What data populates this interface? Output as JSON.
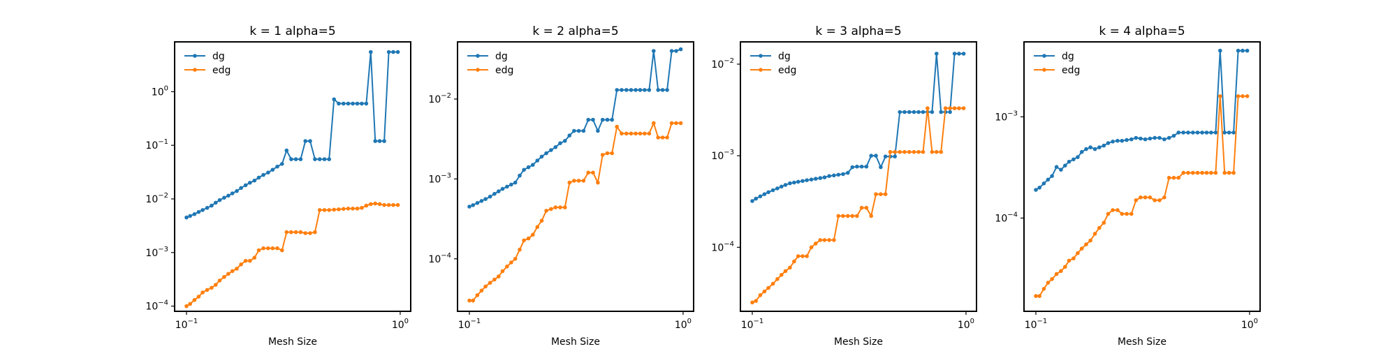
{
  "chart_data": [
    {
      "type": "line",
      "title": "k = 1 alpha=5",
      "xlabel": "Mesh Size",
      "ylabel": "",
      "xscale": "log",
      "yscale": "log",
      "xlim": [
        0.088,
        1.12
      ],
      "ylim": [
        8e-05,
        8.5
      ],
      "xticks": [
        {
          "value": 0.1,
          "base": "10",
          "exp": "−1"
        },
        {
          "value": 1.0,
          "base": "10",
          "exp": "0"
        }
      ],
      "yticks": [
        {
          "value": 0.0001,
          "base": "10",
          "exp": "−4"
        },
        {
          "value": 0.001,
          "base": "10",
          "exp": "−3"
        },
        {
          "value": 0.01,
          "base": "10",
          "exp": "−2"
        },
        {
          "value": 0.1,
          "base": "10",
          "exp": "−1"
        },
        {
          "value": 1.0,
          "base": "10",
          "exp": "0"
        }
      ],
      "legend_position": "top-left",
      "x": [
        0.1,
        0.104,
        0.109,
        0.114,
        0.119,
        0.125,
        0.131,
        0.137,
        0.143,
        0.15,
        0.157,
        0.164,
        0.172,
        0.18,
        0.189,
        0.198,
        0.208,
        0.218,
        0.229,
        0.241,
        0.253,
        0.266,
        0.28,
        0.294,
        0.309,
        0.325,
        0.342,
        0.36,
        0.379,
        0.399,
        0.42,
        0.442,
        0.465,
        0.49,
        0.516,
        0.543,
        0.571,
        0.6,
        0.63,
        0.661,
        0.694,
        0.728,
        0.764,
        0.802,
        0.842,
        0.884,
        0.928,
        0.975
      ],
      "series": [
        {
          "name": "dg",
          "color": "#1f77b4",
          "values": [
            0.0045,
            0.0048,
            0.0052,
            0.0057,
            0.0062,
            0.0068,
            0.0075,
            0.0085,
            0.0095,
            0.0105,
            0.0115,
            0.0127,
            0.014,
            0.016,
            0.018,
            0.02,
            0.022,
            0.025,
            0.028,
            0.031,
            0.035,
            0.04,
            0.045,
            0.08,
            0.055,
            0.055,
            0.055,
            0.12,
            0.12,
            0.055,
            0.055,
            0.055,
            0.055,
            0.72,
            0.6,
            0.6,
            0.6,
            0.6,
            0.6,
            0.6,
            0.6,
            5.5,
            0.12,
            0.12,
            0.12,
            5.5,
            5.5,
            5.5
          ]
        },
        {
          "name": "edg",
          "color": "#ff7f0e",
          "values": [
            0.0001,
            0.00011,
            0.00013,
            0.00015,
            0.00018,
            0.0002,
            0.00022,
            0.00025,
            0.0003,
            0.00035,
            0.0004,
            0.00045,
            0.0005,
            0.0006,
            0.0007,
            0.0007,
            0.0008,
            0.0011,
            0.0012,
            0.0012,
            0.0012,
            0.0012,
            0.0011,
            0.0024,
            0.0024,
            0.0024,
            0.0024,
            0.0023,
            0.0023,
            0.0024,
            0.0062,
            0.0062,
            0.0062,
            0.0063,
            0.0064,
            0.0065,
            0.0066,
            0.0066,
            0.0066,
            0.0068,
            0.0075,
            0.008,
            0.0082,
            0.008,
            0.0077,
            0.0077,
            0.0077,
            0.0077
          ]
        }
      ]
    },
    {
      "type": "line",
      "title": "k = 2 alpha=5",
      "xlabel": "Mesh Size",
      "ylabel": "",
      "xscale": "log",
      "yscale": "log",
      "xlim": [
        0.088,
        1.12
      ],
      "ylim": [
        2.2e-05,
        0.052
      ],
      "xticks": [
        {
          "value": 0.1,
          "base": "10",
          "exp": "−1"
        },
        {
          "value": 1.0,
          "base": "10",
          "exp": "0"
        }
      ],
      "yticks": [
        {
          "value": 0.0001,
          "base": "10",
          "exp": "−4"
        },
        {
          "value": 0.001,
          "base": "10",
          "exp": "−3"
        },
        {
          "value": 0.01,
          "base": "10",
          "exp": "−2"
        }
      ],
      "legend_position": "top-left",
      "x": [
        0.1,
        0.104,
        0.109,
        0.114,
        0.119,
        0.125,
        0.131,
        0.137,
        0.143,
        0.15,
        0.157,
        0.164,
        0.172,
        0.18,
        0.189,
        0.198,
        0.208,
        0.218,
        0.229,
        0.241,
        0.253,
        0.266,
        0.28,
        0.294,
        0.309,
        0.325,
        0.342,
        0.36,
        0.379,
        0.399,
        0.42,
        0.442,
        0.465,
        0.49,
        0.516,
        0.543,
        0.571,
        0.6,
        0.63,
        0.661,
        0.694,
        0.728,
        0.764,
        0.802,
        0.842,
        0.884,
        0.928,
        0.975
      ],
      "series": [
        {
          "name": "dg",
          "color": "#1f77b4",
          "values": [
            0.00045,
            0.00047,
            0.0005,
            0.00053,
            0.00056,
            0.0006,
            0.00065,
            0.0007,
            0.00075,
            0.0008,
            0.00085,
            0.0009,
            0.0011,
            0.0013,
            0.0014,
            0.0015,
            0.0017,
            0.0019,
            0.0021,
            0.0023,
            0.0025,
            0.0028,
            0.003,
            0.0035,
            0.004,
            0.004,
            0.004,
            0.0055,
            0.0055,
            0.004,
            0.0055,
            0.0055,
            0.0055,
            0.013,
            0.013,
            0.013,
            0.013,
            0.013,
            0.013,
            0.013,
            0.013,
            0.04,
            0.013,
            0.013,
            0.013,
            0.04,
            0.04,
            0.042
          ]
        },
        {
          "name": "edg",
          "color": "#ff7f0e",
          "values": [
            3e-05,
            3e-05,
            3.5e-05,
            4e-05,
            4.5e-05,
            5e-05,
            5.5e-05,
            6e-05,
            7e-05,
            8e-05,
            9e-05,
            0.0001,
            0.00013,
            0.00017,
            0.00018,
            0.0002,
            0.00025,
            0.0003,
            0.0004,
            0.00042,
            0.00044,
            0.00044,
            0.00044,
            0.0009,
            0.00095,
            0.00095,
            0.00095,
            0.0012,
            0.0012,
            0.0009,
            0.002,
            0.0021,
            0.0021,
            0.0045,
            0.0037,
            0.0037,
            0.0037,
            0.0037,
            0.0037,
            0.0037,
            0.0037,
            0.005,
            0.0033,
            0.0033,
            0.0033,
            0.005,
            0.005,
            0.005
          ]
        }
      ]
    },
    {
      "type": "line",
      "title": "k = 3 alpha=5",
      "xlabel": "Mesh Size",
      "ylabel": "",
      "xscale": "log",
      "yscale": "log",
      "xlim": [
        0.088,
        1.12
      ],
      "ylim": [
        2e-05,
        0.0175
      ],
      "xticks": [
        {
          "value": 0.1,
          "base": "10",
          "exp": "−1"
        },
        {
          "value": 1.0,
          "base": "10",
          "exp": "0"
        }
      ],
      "yticks": [
        {
          "value": 0.0001,
          "base": "10",
          "exp": "−4"
        },
        {
          "value": 0.001,
          "base": "10",
          "exp": "−3"
        },
        {
          "value": 0.01,
          "base": "10",
          "exp": "−2"
        }
      ],
      "legend_position": "top-left",
      "x": [
        0.1,
        0.104,
        0.109,
        0.114,
        0.119,
        0.125,
        0.131,
        0.137,
        0.143,
        0.15,
        0.157,
        0.164,
        0.172,
        0.18,
        0.189,
        0.198,
        0.208,
        0.218,
        0.229,
        0.241,
        0.253,
        0.266,
        0.28,
        0.294,
        0.309,
        0.325,
        0.342,
        0.36,
        0.379,
        0.399,
        0.42,
        0.442,
        0.465,
        0.49,
        0.516,
        0.543,
        0.571,
        0.6,
        0.63,
        0.661,
        0.694,
        0.728,
        0.764,
        0.802,
        0.842,
        0.884,
        0.928,
        0.975
      ],
      "series": [
        {
          "name": "dg",
          "color": "#1f77b4",
          "values": [
            0.00032,
            0.00034,
            0.00036,
            0.00038,
            0.0004,
            0.00042,
            0.00044,
            0.00046,
            0.00048,
            0.0005,
            0.00051,
            0.00052,
            0.00053,
            0.00054,
            0.00055,
            0.00056,
            0.00057,
            0.00058,
            0.0006,
            0.00061,
            0.00062,
            0.00063,
            0.00065,
            0.00075,
            0.00076,
            0.00076,
            0.00076,
            0.001,
            0.001,
            0.00075,
            0.00098,
            0.00098,
            0.00098,
            0.003,
            0.003,
            0.003,
            0.003,
            0.003,
            0.003,
            0.003,
            0.003,
            0.013,
            0.003,
            0.003,
            0.003,
            0.013,
            0.013,
            0.013
          ]
        },
        {
          "name": "edg",
          "color": "#ff7f0e",
          "values": [
            2.5e-05,
            2.6e-05,
            3e-05,
            3.3e-05,
            3.6e-05,
            4e-05,
            4.5e-05,
            5e-05,
            5.5e-05,
            6e-05,
            7e-05,
            8e-05,
            8e-05,
            8e-05,
            0.0001,
            0.00011,
            0.00012,
            0.00012,
            0.00012,
            0.00012,
            0.00022,
            0.00022,
            0.00022,
            0.00022,
            0.00022,
            0.00027,
            0.00027,
            0.00022,
            0.00038,
            0.00038,
            0.00038,
            0.0011,
            0.0011,
            0.0011,
            0.0011,
            0.0011,
            0.0011,
            0.0011,
            0.0011,
            0.0033,
            0.0011,
            0.0011,
            0.0011,
            0.0033,
            0.0033,
            0.0033,
            0.0033,
            0.0033
          ]
        }
      ]
    },
    {
      "type": "line",
      "title": "k = 4 alpha=5",
      "xlabel": "Mesh Size",
      "ylabel": "",
      "xscale": "log",
      "yscale": "log",
      "xlim": [
        0.088,
        1.12
      ],
      "ylim": [
        1.2e-05,
        0.0055
      ],
      "xticks": [
        {
          "value": 0.1,
          "base": "10",
          "exp": "−1"
        },
        {
          "value": 1.0,
          "base": "10",
          "exp": "0"
        }
      ],
      "yticks": [
        {
          "value": 0.0001,
          "base": "10",
          "exp": "−4"
        },
        {
          "value": 0.001,
          "base": "10",
          "exp": "−3"
        }
      ],
      "legend_position": "top-left",
      "x": [
        0.1,
        0.104,
        0.109,
        0.114,
        0.119,
        0.125,
        0.131,
        0.137,
        0.143,
        0.15,
        0.157,
        0.164,
        0.172,
        0.18,
        0.189,
        0.198,
        0.208,
        0.218,
        0.229,
        0.241,
        0.253,
        0.266,
        0.28,
        0.294,
        0.309,
        0.325,
        0.342,
        0.36,
        0.379,
        0.399,
        0.42,
        0.442,
        0.465,
        0.49,
        0.516,
        0.543,
        0.571,
        0.6,
        0.63,
        0.661,
        0.694,
        0.728,
        0.764,
        0.802,
        0.842,
        0.884,
        0.928,
        0.975
      ],
      "series": [
        {
          "name": "dg",
          "color": "#1f77b4",
          "values": [
            0.00019,
            0.0002,
            0.00022,
            0.00024,
            0.00026,
            0.00032,
            0.0003,
            0.00033,
            0.00036,
            0.00038,
            0.0004,
            0.00045,
            0.00048,
            0.0005,
            0.00048,
            0.0005,
            0.00052,
            0.00055,
            0.00057,
            0.00058,
            0.00058,
            0.00059,
            0.0006,
            0.00062,
            0.00061,
            0.0006,
            0.00061,
            0.00062,
            0.00062,
            0.0006,
            0.00062,
            0.00065,
            0.0007,
            0.0007,
            0.0007,
            0.0007,
            0.0007,
            0.0007,
            0.0007,
            0.0007,
            0.0007,
            0.0045,
            0.0007,
            0.0007,
            0.0007,
            0.0045,
            0.0045,
            0.0045
          ]
        },
        {
          "name": "edg",
          "color": "#ff7f0e",
          "values": [
            1.7e-05,
            1.7e-05,
            2e-05,
            2.3e-05,
            2.5e-05,
            2.8e-05,
            3e-05,
            3.3e-05,
            3.8e-05,
            4e-05,
            4.5e-05,
            5e-05,
            5.5e-05,
            6e-05,
            7e-05,
            8e-05,
            9e-05,
            0.00011,
            0.00012,
            0.00012,
            0.00011,
            0.00011,
            0.00011,
            0.00015,
            0.00016,
            0.00016,
            0.00016,
            0.00015,
            0.00015,
            0.00016,
            0.00025,
            0.00025,
            0.00025,
            0.00028,
            0.00028,
            0.00028,
            0.00028,
            0.00028,
            0.00028,
            0.00028,
            0.00028,
            0.0016,
            0.00028,
            0.00028,
            0.00028,
            0.0016,
            0.0016,
            0.0016
          ]
        }
      ]
    }
  ]
}
